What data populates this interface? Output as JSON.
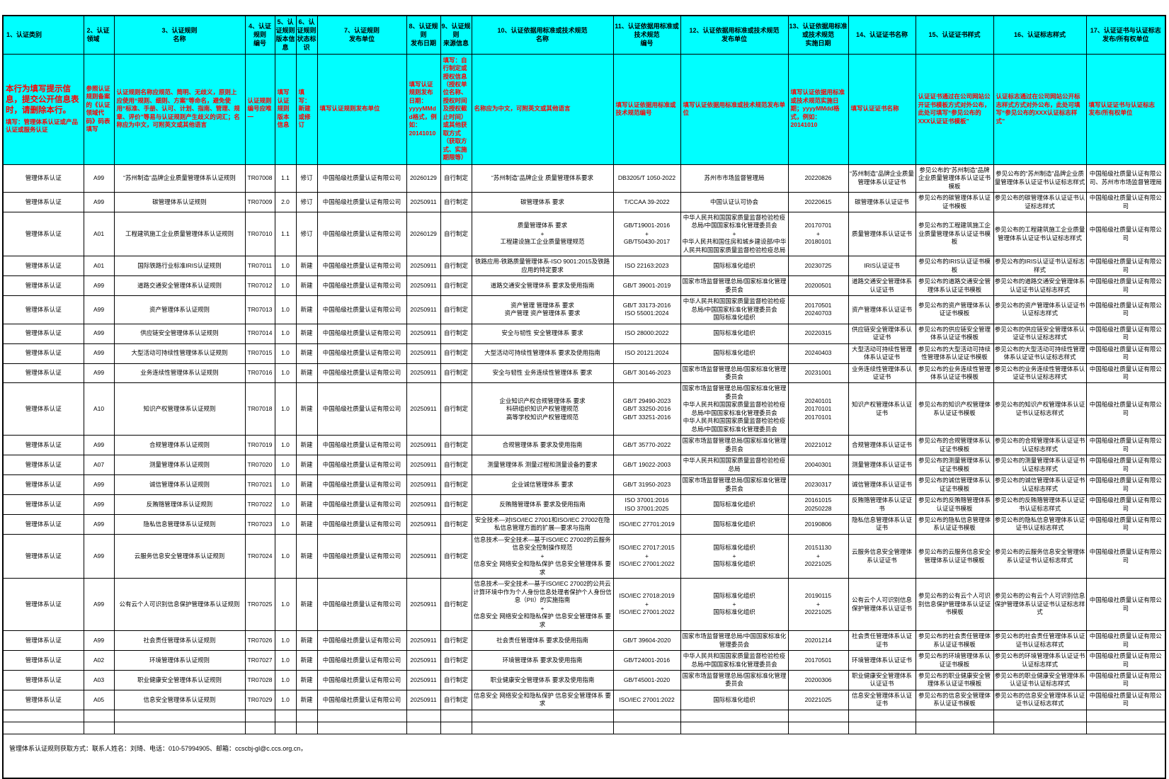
{
  "table": {
    "headers": [
      "1、认证类别",
      "2、认证领域",
      "3、认证规则\n名称",
      "4、认证规则\n编号",
      "5、认证规则\n版本信息",
      "6、认证规则\n状态标识",
      "7、认证规则\n发布单位",
      "8、认证规则\n发布日期",
      "9、认证规则\n来源信息",
      "10、认证依据用标准或技术规范\n名称",
      "11、认证依据用标准或技术规范\n编号",
      "12、认证依据用标准或技术规范\n发布单位",
      "13、认证依据用标准或技术规范\n实施日期",
      "14、认证证书名称",
      "15、认证证书样式",
      "16、认证标志样式",
      "17、认证证书与认证标志\n发布/所有权单位"
    ],
    "hint_lead": "本行为填写提示信息，提交公开信息表时，请删除本行。",
    "hints": [
      "填写：管理体系认证或产品认证或服务认证",
      "参照认证规则备案的《认证领域代码》码表填写",
      "认证规则名称应规范、简明、无歧义，原则上应使用“规则、细则、方案”等命名，避免使用“标准、手册、认可、计划、指南、管理、规章、评价”等易与认证规则产生歧义的词汇；名称应为中文，可附英文或其他语言",
      "认证规则编号应唯一",
      "填写认证规则版本信息",
      "填写：新建或修订",
      "填写认证规则发布单位",
      "填写认证规则发布日期：yyyyMMdd格式，例如：20141010",
      "填写：自行制定或授权信息（授权单位名称、授权时间及授权截止时间）或其他获取方式（获取方式、实施期限等）",
      "名称应为中文，可附英文或其他语言",
      "填写认证依据用标准或技术规范编号",
      "填写认证依据用标准或技术规范发布单位",
      "填写认证依据用标准或技术规范实施日期；yyyyMMdd格式，例如：20141010",
      "填写认证证书名称",
      "认证证书通过在公司网站公开证书模板方式对外公布，此处可填写“参见公布的XXX认证证书模板”",
      "认证标志通过在公司网站公开标志样式方式对外公布，此处可填写“参见公布的XXX认证标志样式”",
      "填写认证证书与认证标志\n发布/所有权单位"
    ],
    "rows": [
      [
        "管理体系认证",
        "A99",
        "“苏州制造”品牌企业质量管理体系认证规则",
        "TR07008",
        "1.1",
        "修订",
        "中国船级社质量认证有限公司",
        "20260129",
        "自行制定",
        "“苏州制造”品牌企业 质量管理体系要求",
        "DB3205/T 1050-2022",
        "苏州市市场监督管理局",
        "20220826",
        "“苏州制造”品牌企业质量管理体系认证证书",
        "参见公布的“苏州制造”品牌企业质量管理体系认证证书模板",
        "参见公布的“苏州制造”品牌企业质量管理体系认证证书认证标志样式",
        "中国船级社质量认证有限公司、苏州市市场监督管理局"
      ],
      [
        "管理体系认证",
        "A99",
        "碳管理体系认证规则",
        "TR07009",
        "2.0",
        "修订",
        "中国船级社质量认证有限公司",
        "20250911",
        "自行制定",
        "碳管理体系 要求",
        "T/CCAA 39-2022",
        "中国认证认可协会",
        "20220615",
        "碳管理体系认证证书",
        "参见公布的碳管理体系认证证书模板",
        "参见公布的碳管理体系认证证书认证标志样式",
        "中国船级社质量认证有限公司"
      ],
      [
        "管理体系认证",
        "A01",
        "工程建筑施工企业质量管理体系认证规则",
        "TR07010",
        "1.1",
        "修订",
        "中国船级社质量认证有限公司",
        "20260129",
        "自行制定",
        "质量管理体系 要求\n+\n工程建设施工企业质量管理规范",
        "GB/T19001-2016\n+\nGB/T50430-2017",
        "中华人民共和国国家质量监督检验检疫总局/中国国家标准化管理委员会\n+\n中华人民共和国住房和城乡建设部/中华人民共和国国家质量监督检验检疫总局",
        "20170701\n+\n20180101",
        "质量管理体系认证证书",
        "参见公布的工程建筑施工企业质量管理体系认证证书模板",
        "参见公布的工程建筑施工企业质量管理体系认证证书认证标志样式",
        "中国船级社质量认证有限公司"
      ],
      [
        "管理体系认证",
        "A01",
        "国际铁路行业标准IRIS认证规则",
        "TR07011",
        "1.0",
        "新建",
        "中国船级社质量认证有限公司",
        "20250911",
        "自行制定",
        "铁路应用-铁路质量管理体系-ISO 9001:2015及铁路应用的特定要求",
        "ISO 22163:2023",
        "国际标准化组织",
        "20230725",
        "IRIS认证证书",
        "参见公布的IRIS认证证书模板",
        "参见公布的IRIS认证证书认证标志样式",
        "中国船级社质量认证有限公司"
      ],
      [
        "管理体系认证",
        "A99",
        "道路交通安全管理体系认证规则",
        "TR07012",
        "1.0",
        "新建",
        "中国船级社质量认证有限公司",
        "20250911",
        "自行制定",
        "道路交通安全管理体系 要求及使用指南",
        "GB/T 39001-2019",
        "国家市场监督管理总局/国家标准化管理委员会",
        "20200501",
        "道路交通安全管理体系认证证书",
        "参见公布的道路交通安全管理体系认证证书模板",
        "参见公布的道路交通安全管理体系认证证书认证标志样式",
        "中国船级社质量认证有限公司"
      ],
      [
        "管理体系认证",
        "A99",
        "资产管理体系认证规则",
        "TR07013",
        "1.0",
        "新建",
        "中国船级社质量认证有限公司",
        "20250911",
        "自行制定",
        "资产管理 管理体系 要求\n资产管理 资产管理体系 要求",
        "GB/T 33173-2016\nISO 55001:2024",
        "中华人民共和国国家质量监督检验检疫总局/中国国家标准化管理委员会\n国际标准化组织",
        "20170501\n20240703",
        "资产管理体系认证证书",
        "参见公布的资产管理体系认证证书模板",
        "参见公布的资产管理体系认证证书认证标志样式",
        "中国船级社质量认证有限公司"
      ],
      [
        "管理体系认证",
        "A99",
        "供应链安全管理体系认证规则",
        "TR07014",
        "1.0",
        "新建",
        "中国船级社质量认证有限公司",
        "20250911",
        "自行制定",
        "安全与韧性 安全管理体系 要求",
        "ISO 28000:2022",
        "国际标准化组织",
        "20220315",
        "供应链安全管理体系认证证书",
        "参见公布的供应链安全管理体系认证证书模板",
        "参见公布的供应链安全管理体系认证证书认证标志样式",
        "中国船级社质量认证有限公司"
      ],
      [
        "管理体系认证",
        "A99",
        "大型活动可持续性管理体系认证规则",
        "TR07015",
        "1.0",
        "新建",
        "中国船级社质量认证有限公司",
        "20250911",
        "自行制定",
        "大型活动可持续性管理体系 要求及使用指南",
        "ISO 20121:2024",
        "国际标准化组织",
        "20240403",
        "大型活动可持续性管理体系认证证书",
        "参见公布的大型活动可持续性管理体系认证证书模板",
        "参见公布的大型活动可持续性管理体系认证证书认证标志样式",
        "中国船级社质量认证有限公司"
      ],
      [
        "管理体系认证",
        "A99",
        "业务连续性管理体系认证规则",
        "TR07016",
        "1.0",
        "新建",
        "中国船级社质量认证有限公司",
        "20250911",
        "自行制定",
        "安全与韧性 业务连续性管理体系 要求",
        "GB/T 30146-2023",
        "国家市场监督管理总局/国家标准化管理委员会",
        "20231001",
        "业务连续性管理体系认证证书",
        "参见公布的业务连续性管理体系认证证书模板",
        "参见公布的业务连续性管理体系认证证书认证标志样式",
        "中国船级社质量认证有限公司"
      ],
      [
        "管理体系认证",
        "A10",
        "知识产权管理体系认证规则",
        "TR07018",
        "1.0",
        "新建",
        "中国船级社质量认证有限公司",
        "20250911",
        "自行制定",
        "企业知识产权合规管理体系 要求\n科研组织知识产权管理规范\n高等学校知识产权管理规范",
        "GB/T 29490-2023\nGB/T 33250-2016\nGB/T 33251-2016",
        "国家市场监督管理总局/国家标准化管理委员会\n中华人民共和国国家质量监督检验检疫总局/中国国家标准化管理委员会\n中华人民共和国国家质量监督检验检疫总局/中国国家标准化管理委员会",
        "20240101\n20170101\n20170101",
        "知识产权管理体系认证证书",
        "参见公布的知识产权管理体系认证证书模板",
        "参见公布的知识产权管理体系认证证书认证标志样式",
        "中国船级社质量认证有限公司"
      ],
      [
        "管理体系认证",
        "A99",
        "合规管理体系认证规则",
        "TR07019",
        "1.0",
        "新建",
        "中国船级社质量认证有限公司",
        "20250911",
        "自行制定",
        "合规管理体系 要求及使用指南",
        "GB/T 35770-2022",
        "国家市场监督管理总局/国家标准化管理委员会",
        "20221012",
        "合规管理体系认证证书",
        "参见公布的合规管理体系认证证书模板",
        "参见公布的合规管理体系认证证书认证标志样式",
        "中国船级社质量认证有限公司"
      ],
      [
        "管理体系认证",
        "A07",
        "测量管理体系认证规则",
        "TR07020",
        "1.0",
        "新建",
        "中国船级社质量认证有限公司",
        "20250911",
        "自行制定",
        "测量管理体系 测量过程和测量设备的要求",
        "GB/T 19022-2003",
        "中华人民共和国国家质量监督检验检疫总局",
        "20040301",
        "测量管理体系认证证书",
        "参见公布的测量管理体系认证证书模板",
        "参见公布的测量管理体系认证证书认证标志样式",
        "中国船级社质量认证有限公司"
      ],
      [
        "管理体系认证",
        "A99",
        "诚信管理体系认证规则",
        "TR07021",
        "1.0",
        "新建",
        "中国船级社质量认证有限公司",
        "20250911",
        "自行制定",
        "企业诚信管理体系 要求",
        "GB/T 31950-2023",
        "国家市场监督管理总局/国家标准化管理委员会",
        "20230317",
        "诚信管理体系认证证书",
        "参见公布的诚信管理体系认证证书模板",
        "参见公布的诚信管理体系认证证书认证标志样式",
        "中国船级社质量认证有限公司"
      ],
      [
        "管理体系认证",
        "A99",
        "反贿赂管理体系认证规则",
        "TR07022",
        "1.0",
        "新建",
        "中国船级社质量认证有限公司",
        "20250911",
        "自行制定",
        "反贿赂管理体系 要求及使用指南",
        "ISO 37001:2016\nISO 37001:2025",
        "国际标准化组织",
        "20161015\n20250228",
        "反贿赂管理体系认证证书",
        "参见公布的反贿赂管理体系认证证书模板",
        "参见公布的反贿赂管理体系认证证书认证标志样式",
        "中国船级社质量认证有限公司"
      ],
      [
        "管理体系认证",
        "A99",
        "隐私信息管理体系认证规则",
        "TR07023",
        "1.0",
        "新建",
        "中国船级社质量认证有限公司",
        "20250911",
        "自行制定",
        "安全技术—对ISO/IEC 27001和ISO/IEC 27002在隐私信息管理方面的扩展—要求与指南",
        "ISO/IEC 27701:2019",
        "国际标准化组织",
        "20190806",
        "隐私信息管理体系认证证书",
        "参见公布的隐私信息管理体系认证证书模板",
        "参见公布的隐私信息管理体系认证证书认证标志样式",
        "中国船级社质量认证有限公司"
      ],
      [
        "管理体系认证",
        "A99",
        "云服务信息安全管理体系认证规则",
        "TR07024",
        "1.0",
        "新建",
        "中国船级社质量认证有限公司",
        "20250911",
        "自行制定",
        "信息技术—安全技术—基于ISO/IEC 27002的云服务信息安全控制操作规范\n+\n信息安全 网络安全和隐私保护 信息安全管理体系 要求",
        "ISO/IEC 27017:2015\n+\nISO/IEC 27001:2022",
        "国际标准化组织\n+\n国际标准化组织",
        "20151130\n+\n20221025",
        "云服务信息安全管理体系认证证书",
        "参见公布的云服务信息安全管理体系认证证书模板",
        "参见公布的云服务信息安全管理体系认证证书认证标志样式",
        "中国船级社质量认证有限公司"
      ],
      [
        "管理体系认证",
        "A99",
        "公有云个人可识别信息保护管理体系认证规则",
        "TR07025",
        "1.0",
        "新建",
        "中国船级社质量认证有限公司",
        "20250911",
        "自行制定",
        "信息技术—安全技术—基于ISO/IEC 27002的公共云计算环境中作为个人身份信息处理者保护个人身份信息（PII）的实施指南\n+\n信息安全 网络安全和隐私保护 信息安全管理体系 要求",
        "ISO/IEC 27018:2019\n+\nISO/IEC 27001:2022",
        "国际标准化组织\n+\n国际标准化组织",
        "20190115\n+\n20221025",
        "公有云个人可识别信息保护管理体系认证证书",
        "参见公布的公有云个人可识别信息保护管理体系认证证书模板",
        "参见公布的公有云个人可识别信息保护管理体系认证证书认证标志样式",
        "中国船级社质量认证有限公司"
      ],
      [
        "管理体系认证",
        "A99",
        "社会责任管理体系认证规则",
        "TR07026",
        "1.0",
        "新建",
        "中国船级社质量认证有限公司",
        "20250911",
        "自行制定",
        "社会责任管理体系 要求及使用指南",
        "GB/T 39604-2020",
        "国家市场监督管理总局/中国国家标准化管理委员会",
        "20201214",
        "社会责任管理体系认证证书",
        "参见公布的社会责任管理体系认证证书模板",
        "参见公布的社会责任管理体系认证证书认证标志样式",
        "中国船级社质量认证有限公司"
      ],
      [
        "管理体系认证",
        "A02",
        "环境管理体系认证规则",
        "TR07027",
        "1.0",
        "新建",
        "中国船级社质量认证有限公司",
        "20250911",
        "自行制定",
        "环境管理体系 要求及使用指南",
        "GB/T24001-2016",
        "中华人民共和国国家质量监督检验检疫总局/中国国家标准化管理委员会",
        "20170501",
        "环境管理体系认证证书",
        "参见公布的环境管理体系认证证书模板",
        "参见公布的环境管理体系认证证书认证标志样式",
        "中国船级社质量认证有限公司"
      ],
      [
        "管理体系认证",
        "A03",
        "职业健康安全管理体系认证规则",
        "TR07028",
        "1.0",
        "新建",
        "中国船级社质量认证有限公司",
        "20250911",
        "自行制定",
        "职业健康安全管理体系 要求及使用指南",
        "GB/T45001-2020",
        "国家市场监督管理总局/国家标准化管理委员会",
        "20200306",
        "职业健康安全管理体系认证证书",
        "参见公布的职业健康安全管理体系认证证书模板",
        "参见公布的职业健康安全管理体系认证证书认证标志样式",
        "中国船级社质量认证有限公司"
      ],
      [
        "管理体系认证",
        "A05",
        "信息安全管理体系认证规则",
        "TR07029",
        "1.0",
        "新建",
        "中国船级社质量认证有限公司",
        "20250911",
        "自行制定",
        "信息安全 网络安全和隐私保护 信息安全管理体系 要求",
        "ISO/IEC 27001:2022",
        "国际标准化组织",
        "20221025",
        "信息安全管理体系认证证书",
        "参见公布的信息安全管理体系认证证书模板",
        "参见公布的信息安全管理体系认证证书认证标志样式",
        "中国船级社质量认证有限公司"
      ],
      [
        "",
        "",
        "",
        "",
        "",
        "",
        "",
        "",
        "",
        "",
        "",
        "",
        "",
        "",
        "",
        "",
        ""
      ],
      [
        "",
        "",
        "",
        "",
        "",
        "",
        "",
        "",
        "",
        "",
        "",
        "",
        "",
        "",
        "",
        "",
        ""
      ]
    ]
  },
  "footer": {
    "text": "管理体系认证规则获取方式：联系人姓名：刘琦、电话：010-57994905、邮箱：ccscbj-gl@c.ccs.org.cn，"
  },
  "colors": {
    "header_bg": "#00FFFF",
    "hint_text": "#FF0000",
    "border": "#000000"
  }
}
